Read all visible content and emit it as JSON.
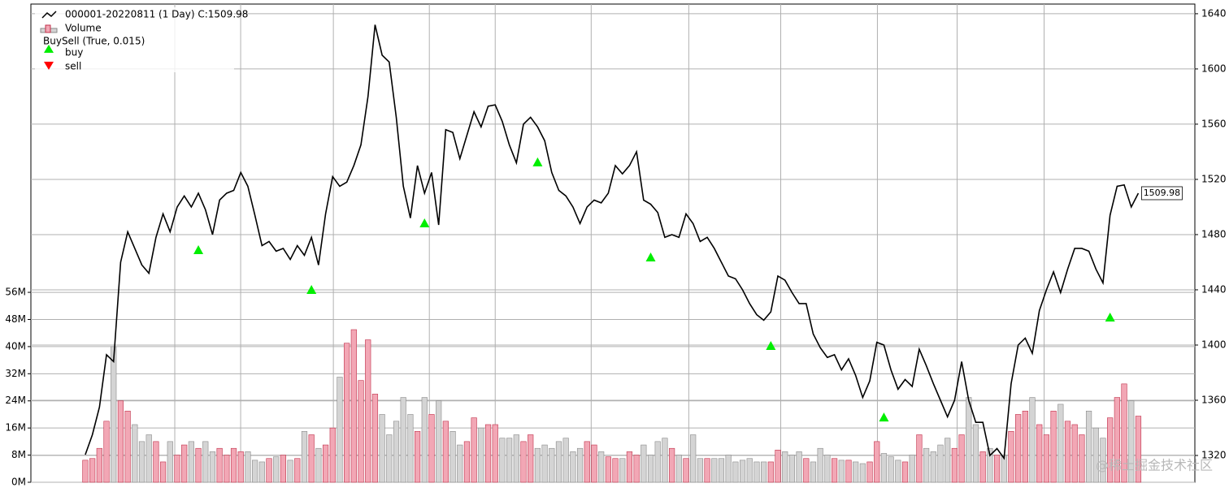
{
  "chart_data": {
    "type": "line",
    "series": [
      {
        "name": "000001-20220811 (1 Day) C:1509.98",
        "color": "#000000",
        "axis": "y2",
        "values": [
          1320.6,
          1335,
          1355,
          1393,
          1388,
          1460,
          1482,
          1470,
          1458,
          1452,
          1478,
          1495,
          1482,
          1500,
          1508,
          1500,
          1510,
          1498,
          1480,
          1505,
          1510,
          1512,
          1525,
          1515,
          1494,
          1472,
          1475,
          1468,
          1470,
          1462,
          1472,
          1465,
          1478,
          1458,
          1495,
          1522,
          1515,
          1518,
          1530,
          1545,
          1580,
          1632,
          1610,
          1605,
          1565,
          1515,
          1492,
          1530,
          1510,
          1525,
          1487,
          1556,
          1554,
          1535,
          1552,
          1569,
          1558,
          1573,
          1574,
          1562,
          1545,
          1532,
          1560,
          1565,
          1558,
          1548,
          1525,
          1512,
          1508,
          1500,
          1488,
          1500,
          1505,
          1503,
          1510,
          1530,
          1524,
          1530,
          1540,
          1505,
          1502,
          1496,
          1478,
          1480,
          1478,
          1495,
          1488,
          1475,
          1478,
          1470,
          1460,
          1450,
          1448,
          1440,
          1430,
          1422,
          1418,
          1424,
          1450,
          1447,
          1438,
          1430,
          1430,
          1408,
          1398,
          1391,
          1393,
          1382,
          1390,
          1378,
          1362,
          1374,
          1402,
          1400,
          1382,
          1368,
          1375,
          1370,
          1397,
          1385,
          1372,
          1360,
          1348,
          1360,
          1388,
          1360,
          1344,
          1344,
          1320,
          1325,
          1318,
          1372,
          1400,
          1405,
          1394,
          1425,
          1440,
          1453,
          1438,
          1455,
          1470,
          1470,
          1468,
          1455,
          1445,
          1494,
          1515,
          1516,
          1500,
          1509.98
        ]
      },
      {
        "name": "Volume",
        "type": "bar",
        "up_color": "#f2a7b5",
        "up_edge": "#c0304a",
        "down_color": "#d4d4d4",
        "down_edge": "#8a8a8a",
        "values": [
          6.5,
          7,
          10,
          18,
          40,
          24,
          21,
          17,
          12,
          14,
          12,
          6,
          12,
          8,
          11,
          12,
          10,
          12,
          9,
          10,
          8,
          10,
          9,
          9,
          6.5,
          6,
          7,
          7.5,
          8,
          6.5,
          7,
          15,
          14,
          10,
          11,
          16,
          31,
          41,
          45,
          30,
          42,
          26,
          20,
          14,
          18,
          25,
          20,
          15,
          25,
          20,
          24,
          18,
          15,
          11,
          12,
          19,
          16,
          17,
          17,
          13,
          13,
          14,
          12,
          14,
          10,
          11,
          10,
          12,
          13,
          9,
          10,
          12,
          11,
          9,
          7.5,
          7,
          7,
          9,
          8,
          11,
          8,
          12,
          13,
          10,
          8,
          7,
          14,
          7,
          7,
          7,
          7,
          8,
          6,
          6.5,
          7,
          6,
          6,
          6,
          9.5,
          9,
          8,
          9,
          7,
          6,
          10,
          8,
          7,
          6.5,
          6.5,
          6,
          5.5,
          6,
          12,
          8.5,
          7.5,
          6.5,
          6,
          8,
          14,
          10,
          9,
          11,
          13,
          10,
          14,
          25,
          17,
          9,
          10,
          8,
          8,
          15,
          20,
          21,
          25,
          17,
          14,
          21,
          23,
          18,
          17,
          14,
          21,
          16,
          13,
          19,
          25,
          29,
          24,
          19.5
        ]
      }
    ],
    "observer": {
      "name": "BuySell (True, 0.015)",
      "series": [
        {
          "name": "buy",
          "color": "#00ee00",
          "x": [
            16,
            32,
            48,
            64,
            80,
            97,
            113,
            145
          ],
          "values": [
            1468.8,
            1440,
            1488.2,
            1532.4,
            1463.5,
            1399.4,
            1347.6,
            1420
          ]
        },
        {
          "name": "sell",
          "color": "#ff0000",
          "x": [],
          "values": []
        }
      ]
    },
    "xlim": [
      -7.7,
      157
    ],
    "xticks": [
      12.66,
      21.98,
      35.1,
      48.68,
      58,
      71.58,
      85.39,
      98.4,
      112.08,
      123.36,
      135.67
    ],
    "ylim": [
      0,
      141
    ],
    "yticks": [
      {
        "value": 0,
        "label": "0M"
      },
      {
        "value": 8,
        "label": "8M"
      },
      {
        "value": 16,
        "label": "16M"
      },
      {
        "value": 24,
        "label": "24M"
      },
      {
        "value": 32,
        "label": "32M"
      },
      {
        "value": 40,
        "label": "40M"
      },
      {
        "value": 48,
        "label": "48M"
      },
      {
        "value": 56,
        "label": "56M"
      }
    ],
    "y2lim": [
      1300.6,
      1647
    ],
    "y2ticks": [
      1320,
      1360,
      1400,
      1440,
      1480,
      1520,
      1560,
      1600,
      1640
    ],
    "grid": true,
    "watermark": "@稀土掘金技术社区"
  }
}
